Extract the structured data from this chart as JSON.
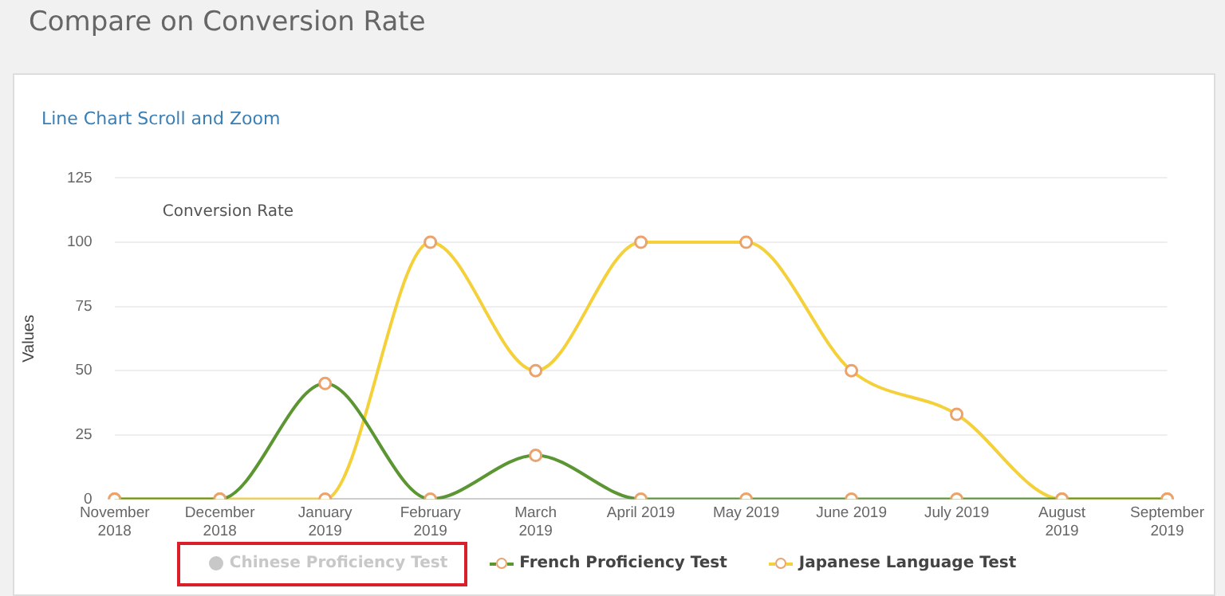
{
  "chart_data": {
    "type": "line",
    "title": "Compare on Conversion Rate",
    "subtitle": "Line Chart Scroll and Zoom",
    "annotations": [
      "Conversion Rate"
    ],
    "ylabel": "Values",
    "categories": [
      "November 2018",
      "December 2018",
      "January 2019",
      "February 2019",
      "March 2019",
      "April 2019",
      "May 2019",
      "June 2019",
      "July 2019",
      "August 2019",
      "September 2019"
    ],
    "series": [
      {
        "name": "Chinese Proficiency Test",
        "color": "#c8c8c8",
        "values": [
          null,
          null,
          null,
          null,
          null,
          null,
          null,
          null,
          null,
          null,
          null
        ]
      },
      {
        "name": "French Proficiency Test",
        "color": "#5b9633",
        "values": [
          0,
          0,
          45,
          0,
          17,
          0,
          0,
          0,
          0,
          0,
          0
        ]
      },
      {
        "name": "Japanese Language Test",
        "color": "#f4d03a",
        "values": [
          0,
          0,
          0,
          100,
          50,
          100,
          100,
          50,
          33,
          0,
          0
        ]
      }
    ],
    "ylim": [
      0,
      125
    ],
    "yticks": [
      0,
      25,
      50,
      75,
      100,
      125
    ],
    "grid": "y",
    "legend": "bottom",
    "marker": "circle",
    "line_style": "solid"
  }
}
